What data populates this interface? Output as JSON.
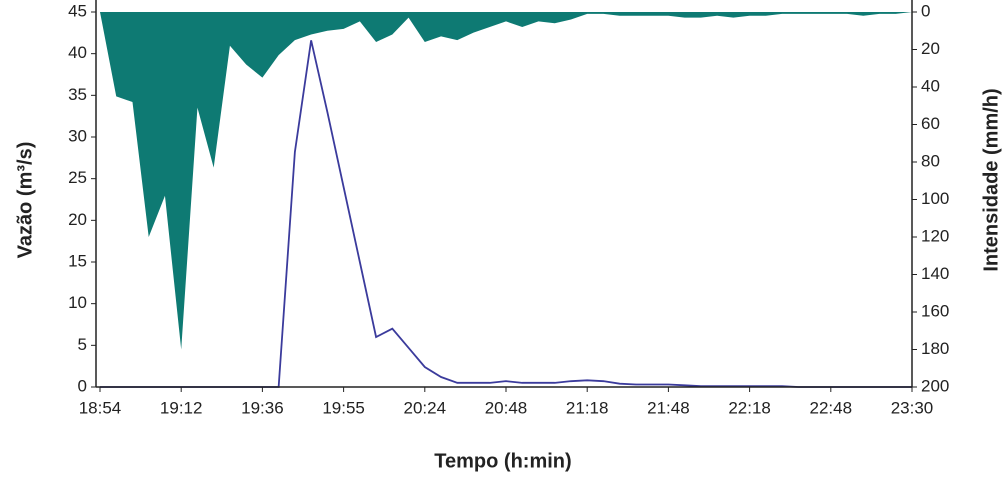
{
  "chart_data": {
    "type": "line-area",
    "xlabel": "Tempo (h:min)",
    "ylabel": "Vazão (m³/s)",
    "y2label": "Intensidade (mm/h)",
    "categories": [
      "18:54",
      null,
      null,
      null,
      null,
      "19:12",
      null,
      null,
      null,
      null,
      "19:36",
      null,
      null,
      null,
      null,
      "19:55",
      null,
      null,
      null,
      null,
      "20:24",
      null,
      null,
      null,
      null,
      "20:48",
      null,
      null,
      null,
      null,
      "21:18",
      null,
      null,
      null,
      null,
      "21:48",
      null,
      null,
      null,
      null,
      "22:18",
      null,
      null,
      null,
      null,
      "22:48",
      null,
      null,
      null,
      null,
      "23:30"
    ],
    "series": [
      {
        "type": "line",
        "color": "#3b3b9c",
        "values": [
          0,
          0,
          0,
          0,
          0,
          0,
          0,
          0,
          0,
          0,
          0,
          0,
          28.2,
          41.6,
          33,
          24,
          15,
          6,
          7,
          4.7,
          2.4,
          1.2,
          0.5,
          0.5,
          0.5,
          0.7,
          0.5,
          0.5,
          0.5,
          0.7,
          0.8,
          0.7,
          0.4,
          0.3,
          0.3,
          0.3,
          0.2,
          0.1,
          0.1,
          0.1,
          0.1,
          0.1,
          0.1,
          0,
          0,
          0,
          0,
          0,
          0,
          0,
          0
        ]
      },
      {
        "type": "area",
        "axis": "y2",
        "color": "#0e7a73",
        "values": [
          0,
          45,
          48,
          120,
          98,
          180,
          51,
          83,
          18,
          28,
          35,
          23,
          15,
          12,
          10,
          9,
          5,
          16,
          12,
          3,
          16,
          13,
          15,
          11,
          8,
          5,
          8,
          5,
          6,
          4,
          1,
          1,
          2,
          2,
          2,
          2,
          3,
          3,
          2,
          3,
          2,
          2,
          1,
          1,
          1,
          1,
          1,
          2,
          1,
          1,
          0
        ]
      }
    ],
    "ylim": [
      0,
      45
    ],
    "yticks": [
      0,
      5,
      10,
      15,
      20,
      25,
      30,
      35,
      40,
      45
    ],
    "y2lim": [
      200,
      0
    ],
    "y2ticks": [
      0,
      20,
      40,
      60,
      80,
      100,
      120,
      140,
      160,
      180,
      200
    ]
  }
}
